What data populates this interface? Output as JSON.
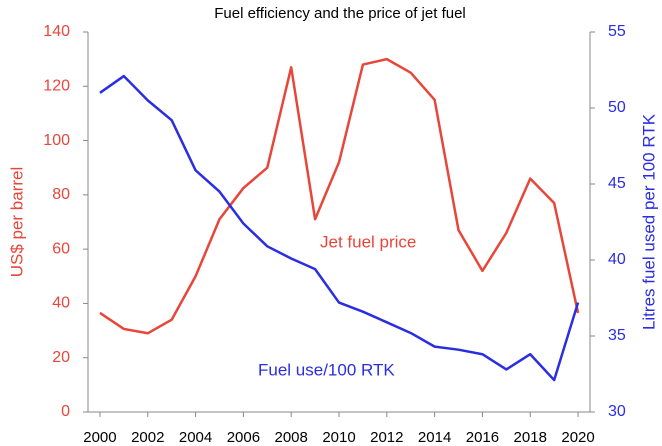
{
  "chart_data": {
    "type": "line",
    "title": "Fuel efficiency and the price of jet fuel",
    "ylabel": "US$ per barrel",
    "y2label": "Litres fuel used per 100 RTK",
    "x": [
      2000,
      2001,
      2002,
      2003,
      2004,
      2005,
      2006,
      2007,
      2008,
      2009,
      2010,
      2011,
      2012,
      2013,
      2014,
      2015,
      2016,
      2017,
      2018,
      2019,
      2020
    ],
    "xlim": [
      1999.5,
      2020.5
    ],
    "xticks": [
      2000,
      2002,
      2004,
      2006,
      2008,
      2010,
      2012,
      2014,
      2016,
      2018,
      2020
    ],
    "ylim": [
      0,
      140
    ],
    "yticks": [
      0,
      20,
      40,
      60,
      80,
      100,
      120,
      140
    ],
    "y2lim": [
      30,
      55
    ],
    "y2ticks": [
      30,
      35,
      40,
      45,
      50,
      55
    ],
    "series": [
      {
        "name": "Jet fuel price",
        "color": "#e8463a",
        "values": [
          36.5,
          30.6,
          29,
          34,
          50,
          71,
          82.5,
          90,
          127,
          71,
          92,
          128,
          130,
          125,
          115,
          67,
          52,
          66,
          86,
          77,
          36.5
        ]
      },
      {
        "name": "Fuel use/100 RTK",
        "color": "#2a2ee0",
        "axis": "y2",
        "values": [
          51,
          52.1,
          50.5,
          49.2,
          45.9,
          44.5,
          42.4,
          40.9,
          40.1,
          39.4,
          37.2,
          36.6,
          35.9,
          35.2,
          34.3,
          34.1,
          33.8,
          32.8,
          33.8,
          32.1,
          37.2
        ]
      }
    ]
  }
}
